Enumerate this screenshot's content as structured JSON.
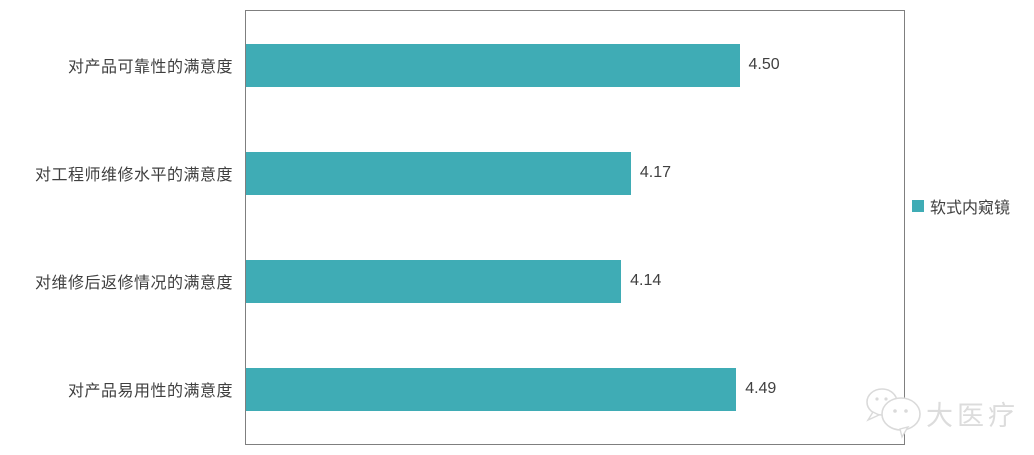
{
  "chart_data": {
    "type": "bar",
    "orientation": "horizontal",
    "categories": [
      "对产品可靠性的满意度",
      "对工程师维修水平的满意度",
      "对维修后返修情况的满意度",
      "对产品易用性的满意度"
    ],
    "series": [
      {
        "name": "软式内窥镜",
        "values": [
          4.5,
          4.17,
          4.14,
          4.49
        ]
      }
    ],
    "value_labels": [
      "4.50",
      "4.17",
      "4.14",
      "4.49"
    ],
    "title": "",
    "xlabel": "",
    "ylabel": "",
    "xlim": [
      3.0,
      5.0
    ],
    "grid": false,
    "legend_position": "right",
    "bar_color": "#3FACB5",
    "plot_border_color": "#7f7f7f"
  },
  "legend": {
    "label": "软式内窥镜",
    "marker_color": "#3FACB5"
  },
  "watermark": {
    "text": "大医疗"
  }
}
